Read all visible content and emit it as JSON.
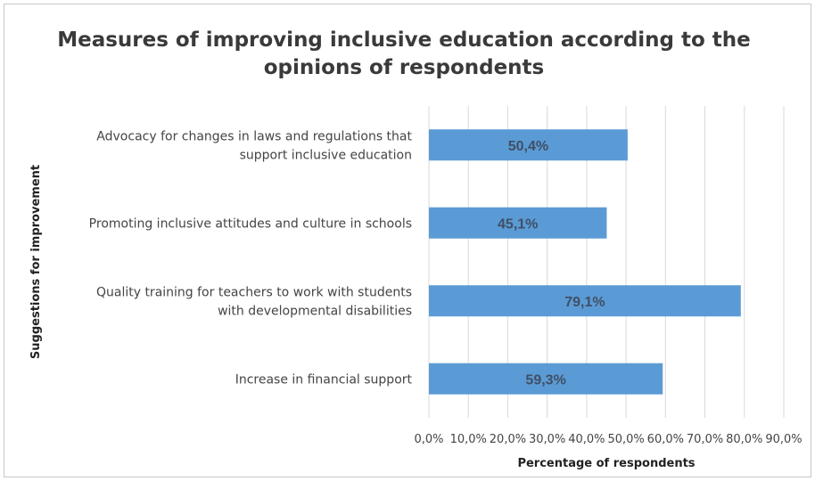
{
  "chart_data": {
    "type": "bar",
    "orientation": "horizontal",
    "title_lines": [
      "Measures of improving inclusive education according to the",
      "opinions of respondents"
    ],
    "xlabel": "Percentage of respondents",
    "ylabel": "Suggestions for improvement",
    "categories": [
      [
        "Advocacy for changes in laws and regulations that",
        "support inclusive education"
      ],
      [
        "Promoting inclusive attitudes and culture in schools"
      ],
      [
        "Quality training for teachers to work with students",
        "with developmental disabilities"
      ],
      [
        "Increase in financial support"
      ]
    ],
    "values": [
      50.4,
      45.1,
      79.1,
      59.3
    ],
    "data_labels": [
      "50,4%",
      "45,1%",
      "79,1%",
      "59,3%"
    ],
    "xlim": [
      0,
      90
    ],
    "xticks": [
      0,
      10,
      20,
      30,
      40,
      50,
      60,
      70,
      80,
      90
    ],
    "xtick_labels": [
      "0,0%",
      "10,0%",
      "20,0%",
      "30,0%",
      "40,0%",
      "50,0%",
      "60,0%",
      "70,0%",
      "80,0%",
      "90,0%"
    ],
    "grid": "vertical",
    "legend": "none",
    "bar_color": "#5b9bd5",
    "label_color": "#3f4f66"
  }
}
